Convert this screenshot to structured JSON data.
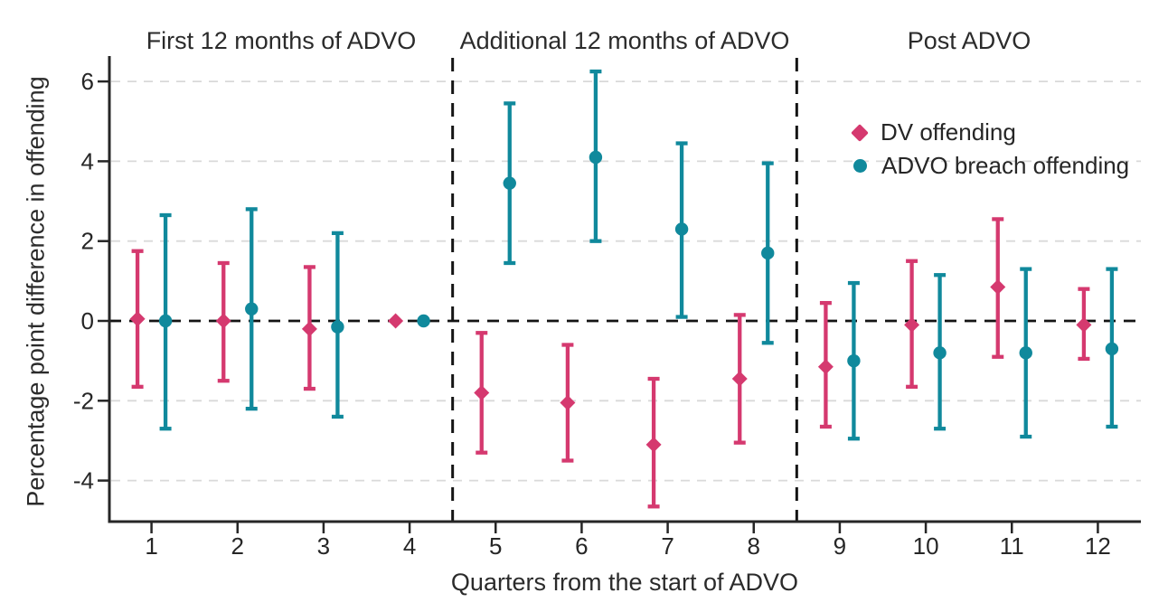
{
  "chart_data": {
    "type": "scatter",
    "subtype": "point-estimates-with-95ci-error-bars",
    "xlabel": "Quarters from the start of ADVO",
    "ylabel": "Percentage point difference in offending",
    "x": [
      1,
      2,
      3,
      4,
      5,
      6,
      7,
      8,
      9,
      10,
      11,
      12
    ],
    "x_axis": {
      "ticks": [
        1,
        2,
        3,
        4,
        5,
        6,
        7,
        8,
        9,
        10,
        11,
        12
      ],
      "xlim": [
        0.5,
        12.5
      ]
    },
    "y_axis": {
      "ticks": [
        6,
        4,
        2,
        0,
        -2,
        -4
      ],
      "ylim": [
        -5.0,
        6.6
      ],
      "zero_line": "black-dashed"
    },
    "grid": "horizontal-dashed",
    "panels": [
      {
        "label": "First 12 months of ADVO",
        "x_start": 0.5,
        "x_end": 4.5
      },
      {
        "label": "Additional 12 months of ADVO",
        "x_start": 4.5,
        "x_end": 8.5
      },
      {
        "label": "Post ADVO",
        "x_start": 8.5,
        "x_end": 12.5
      }
    ],
    "series": [
      {
        "name": "DV offending",
        "marker": "diamond",
        "color": "#d5396f",
        "values": [
          0.05,
          0.0,
          -0.2,
          0.0,
          -1.8,
          -2.05,
          -3.1,
          -1.45,
          -1.15,
          -0.1,
          0.85,
          -0.1
        ],
        "ci_low": [
          -1.65,
          -1.5,
          -1.7,
          null,
          -3.3,
          -3.5,
          -4.65,
          -3.05,
          -2.65,
          -1.65,
          -0.9,
          -0.95
        ],
        "ci_high": [
          1.75,
          1.45,
          1.35,
          null,
          -0.3,
          -0.6,
          -1.45,
          0.15,
          0.45,
          1.5,
          2.55,
          0.8
        ]
      },
      {
        "name": "ADVO breach offending",
        "marker": "circle",
        "color": "#10899c",
        "values": [
          0.0,
          0.3,
          -0.15,
          0.0,
          3.45,
          4.1,
          2.3,
          1.7,
          -1.0,
          -0.8,
          -0.8,
          -0.7
        ],
        "ci_low": [
          -2.7,
          -2.2,
          -2.4,
          null,
          1.45,
          2.0,
          0.1,
          -0.55,
          -2.95,
          -2.7,
          -2.9,
          -2.65
        ],
        "ci_high": [
          2.65,
          2.8,
          2.2,
          null,
          5.45,
          6.25,
          4.45,
          3.95,
          0.95,
          1.15,
          1.3,
          1.3
        ]
      }
    ],
    "legend_position": "top-right-inside-third-panel",
    "colors": {
      "dv": "#d5396f",
      "breach": "#10899c",
      "grid": "#d9d9d9",
      "axis": "#262626",
      "dashed_black": "#141414"
    }
  }
}
